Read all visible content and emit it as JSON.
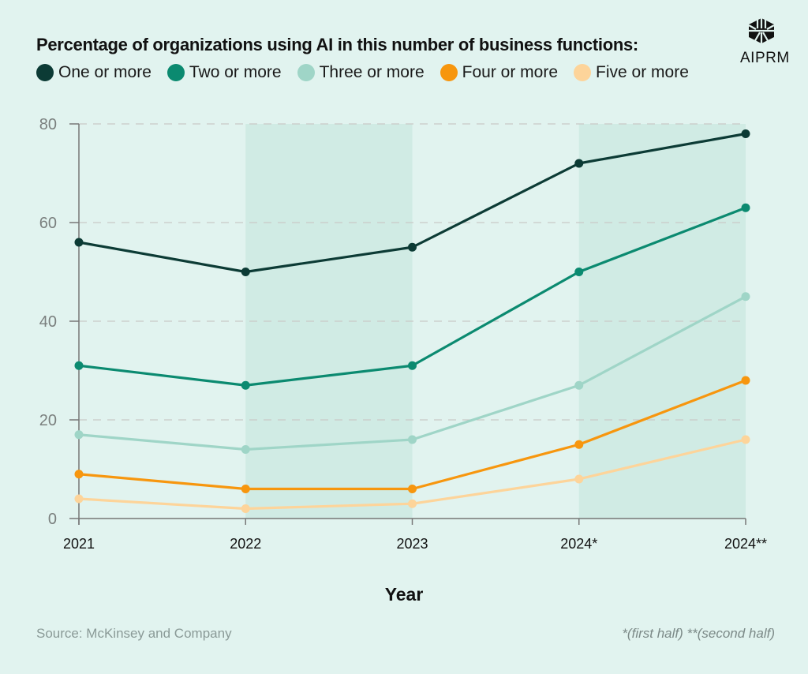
{
  "chart_data": {
    "type": "line",
    "title": "Percentage of organizations using AI in this number of business functions:",
    "xlabel": "Year",
    "ylabel": "",
    "categories": [
      "2021",
      "2022",
      "2023",
      "2024*",
      "2024**"
    ],
    "ylim": [
      0,
      80
    ],
    "yticks": [
      0,
      20,
      40,
      60,
      80
    ],
    "grid": true,
    "legend_placement": "top",
    "shaded_ranges": [
      [
        "2022",
        "2023"
      ],
      [
        "2024*",
        "2024**"
      ]
    ],
    "series": [
      {
        "name": "One or more",
        "color": "#0c3b35",
        "values": [
          56,
          50,
          55,
          72,
          78
        ]
      },
      {
        "name": "Two or more",
        "color": "#0b8a70",
        "values": [
          31,
          27,
          31,
          50,
          63
        ]
      },
      {
        "name": "Three or more",
        "color": "#9fd5c7",
        "values": [
          17,
          14,
          16,
          27,
          45
        ]
      },
      {
        "name": "Four or more",
        "color": "#f7960e",
        "values": [
          9,
          6,
          6,
          15,
          28
        ]
      },
      {
        "name": "Five or more",
        "color": "#fdd49a",
        "values": [
          4,
          2,
          3,
          8,
          16
        ]
      }
    ]
  },
  "source": "Source: McKinsey and Company",
  "footnote": "*(first half)  **(second half)",
  "logo": {
    "text": "AIPRM",
    "icon": "aiprm-logo-icon"
  }
}
